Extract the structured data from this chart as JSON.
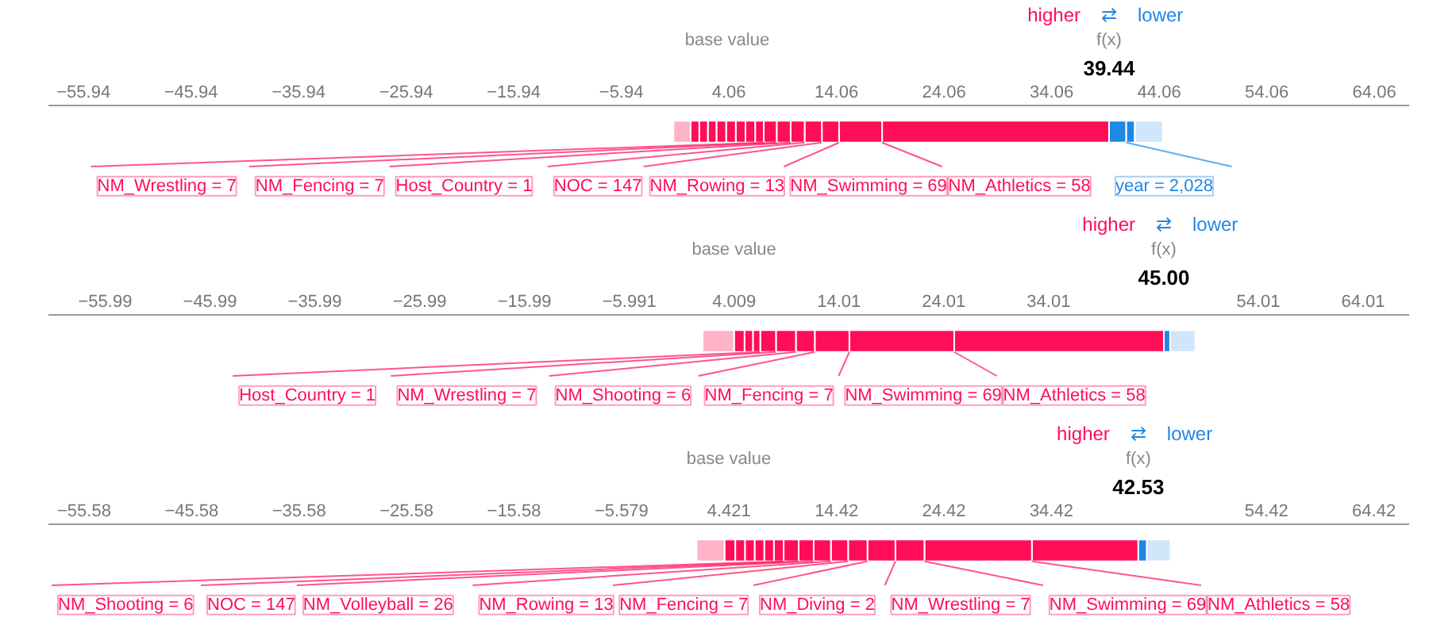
{
  "chart_data": [
    {
      "type": "bar",
      "orientation": "horizontal",
      "categories": [
        null
      ],
      "tick_labels": "x",
      "xlim": [
        -59.2,
        67.3
      ],
      "xticks": [
        -55.94,
        -45.94,
        -35.94,
        -25.94,
        -15.94,
        -5.94,
        4.06,
        14.06,
        24.06,
        34.06,
        44.06,
        54.06,
        64.06
      ],
      "annotations": [
        "higher",
        "⇄",
        "lower",
        "base value",
        "f(x)",
        "39.44"
      ],
      "series": [
        {
          "name": "NM_Athletics = 58",
          "color": "#ff0d57",
          "values": [
            21.1
          ],
          "base": [
            18.3
          ]
        },
        {
          "name": "NM_Swimming = 69",
          "color": "#ff0d57",
          "values": [
            4.0
          ],
          "base": [
            14.3
          ]
        },
        {
          "name": "NM_Rowing = 13",
          "color": "#ff0d57",
          "values": [
            1.6
          ],
          "base": [
            12.7
          ]
        },
        {
          "name": "NOC = 147",
          "color": "#ff0d57",
          "values": [
            1.6
          ],
          "base": [
            11.1
          ]
        },
        {
          "name": "Host_Country = 1",
          "color": "#ff0d57",
          "values": [
            1.3
          ],
          "base": [
            9.8
          ]
        },
        {
          "name": "NM_Fencing = 7",
          "color": "#ff0d57",
          "values": [
            1.3
          ],
          "base": [
            8.5
          ]
        },
        {
          "name": "NM_Wrestling = 7",
          "color": "#ff0d57",
          "values": [
            1.2
          ],
          "base": [
            7.3
          ]
        },
        {
          "color": "#ff0d57",
          "values": [
            0.8
          ],
          "base": [
            6.5
          ]
        },
        {
          "color": "#ff0d57",
          "values": [
            0.9
          ],
          "base": [
            5.6
          ]
        },
        {
          "color": "#ff0d57",
          "values": [
            0.9
          ],
          "base": [
            4.7
          ]
        },
        {
          "color": "#ff0d57",
          "values": [
            0.9
          ],
          "base": [
            3.8
          ]
        },
        {
          "color": "#ff0d57",
          "values": [
            0.9
          ],
          "base": [
            2.9
          ]
        },
        {
          "color": "#ff0d57",
          "values": [
            0.8
          ],
          "base": [
            2.1
          ]
        },
        {
          "color": "#ff0d57",
          "values": [
            0.8
          ],
          "base": [
            1.3
          ]
        },
        {
          "color": "#ff0d57",
          "values": [
            0.8
          ],
          "base": [
            0.5
          ]
        },
        {
          "color": "#ffb3c8",
          "values": [
            1.6
          ],
          "base": [
            -1.1
          ]
        },
        {
          "name": "year = 2,028",
          "color": "#1e88e5",
          "values": [
            -1.6
          ],
          "base": [
            41.0
          ]
        },
        {
          "color": "#1e88e5",
          "values": [
            -0.8
          ],
          "base": [
            41.8
          ]
        },
        {
          "color": "#d1e6fa",
          "values": [
            -2.6
          ],
          "base": [
            44.4
          ]
        }
      ]
    },
    {
      "type": "bar",
      "orientation": "horizontal",
      "categories": [
        null
      ],
      "tick_labels": "x",
      "xlim": [
        -61.4,
        68.4
      ],
      "xticks": [
        -55.99,
        -45.99,
        -35.99,
        -25.99,
        -15.99,
        -5.991,
        4.009,
        14.01,
        24.01,
        34.01,
        54.01,
        64.01
      ],
      "annotations": [
        "higher",
        "⇄",
        "lower",
        "base value",
        "f(x)",
        "45.00"
      ],
      "series": [
        {
          "name": "NM_Athletics = 58",
          "color": "#ff0d57",
          "values": [
            20.0
          ],
          "base": [
            25.0
          ]
        },
        {
          "name": "NM_Swimming = 69",
          "color": "#ff0d57",
          "values": [
            10.0
          ],
          "base": [
            15.0
          ]
        },
        {
          "name": "NM_Fencing = 7",
          "color": "#ff0d57",
          "values": [
            3.3
          ],
          "base": [
            11.7
          ]
        },
        {
          "name": "NM_Shooting = 6",
          "color": "#ff0d57",
          "values": [
            1.8
          ],
          "base": [
            9.9
          ]
        },
        {
          "name": "NM_Wrestling = 7",
          "color": "#ff0d57",
          "values": [
            1.9
          ],
          "base": [
            8.0
          ]
        },
        {
          "name": "Host_Country = 1",
          "color": "#ff0d57",
          "values": [
            1.5
          ],
          "base": [
            6.5
          ]
        },
        {
          "color": "#ff0d57",
          "values": [
            0.7
          ],
          "base": [
            5.8
          ]
        },
        {
          "color": "#ff0d57",
          "values": [
            0.8
          ],
          "base": [
            5.0
          ]
        },
        {
          "color": "#ff0d57",
          "values": [
            1.0
          ],
          "base": [
            4.0
          ]
        },
        {
          "color": "#ffb3c8",
          "values": [
            3.0
          ],
          "base": [
            1.0
          ]
        },
        {
          "color": "#1e88e5",
          "values": [
            -0.6
          ],
          "base": [
            45.6
          ]
        },
        {
          "color": "#d1e6fa",
          "values": [
            -2.4
          ],
          "base": [
            48.0
          ]
        }
      ]
    },
    {
      "type": "bar",
      "orientation": "horizontal",
      "categories": [
        null
      ],
      "tick_labels": "x",
      "xlim": [
        -58.9,
        67.7
      ],
      "xticks": [
        -55.58,
        -45.58,
        -35.58,
        -25.58,
        -15.58,
        -5.579,
        4.421,
        14.42,
        24.42,
        34.42,
        54.42,
        64.42
      ],
      "annotations": [
        "higher",
        "⇄",
        "lower",
        "base value",
        "f(x)",
        "42.53"
      ],
      "series": [
        {
          "name": "NM_Athletics = 58",
          "color": "#ff0d57",
          "values": [
            9.9
          ],
          "base": [
            32.6
          ]
        },
        {
          "name": "NM_Swimming = 69",
          "color": "#ff0d57",
          "values": [
            10.0
          ],
          "base": [
            22.6
          ]
        },
        {
          "name": "NM_Wrestling = 7",
          "color": "#ff0d57",
          "values": [
            2.7
          ],
          "base": [
            19.9
          ]
        },
        {
          "name": "NM_Diving = 2",
          "color": "#ff0d57",
          "values": [
            2.6
          ],
          "base": [
            17.3
          ]
        },
        {
          "name": "NM_Fencing = 7",
          "color": "#ff0d57",
          "values": [
            1.8
          ],
          "base": [
            15.5
          ]
        },
        {
          "name": "NM_Rowing = 13",
          "color": "#ff0d57",
          "values": [
            1.6
          ],
          "base": [
            13.9
          ]
        },
        {
          "name": "NM_Volleyball = 26",
          "color": "#ff0d57",
          "values": [
            1.6
          ],
          "base": [
            12.3
          ]
        },
        {
          "name": "NOC = 147",
          "color": "#ff0d57",
          "values": [
            1.4
          ],
          "base": [
            10.9
          ]
        },
        {
          "name": "NM_Shooting = 6",
          "color": "#ff0d57",
          "values": [
            1.4
          ],
          "base": [
            9.5
          ]
        },
        {
          "color": "#ff0d57",
          "values": [
            0.9
          ],
          "base": [
            8.6
          ]
        },
        {
          "color": "#ff0d57",
          "values": [
            0.9
          ],
          "base": [
            7.7
          ]
        },
        {
          "color": "#ff0d57",
          "values": [
            0.9
          ],
          "base": [
            6.8
          ]
        },
        {
          "color": "#ff0d57",
          "values": [
            0.9
          ],
          "base": [
            5.9
          ]
        },
        {
          "color": "#ff0d57",
          "values": [
            0.9
          ],
          "base": [
            5.0
          ]
        },
        {
          "color": "#ff0d57",
          "values": [
            1.0
          ],
          "base": [
            4.0
          ]
        },
        {
          "color": "#ffb3c8",
          "values": [
            2.6
          ],
          "base": [
            1.4
          ]
        },
        {
          "color": "#1e88e5",
          "values": [
            -0.8
          ],
          "base": [
            43.3
          ]
        },
        {
          "color": "#d1e6fa",
          "values": [
            -2.2
          ],
          "base": [
            45.5
          ]
        }
      ]
    }
  ]
}
